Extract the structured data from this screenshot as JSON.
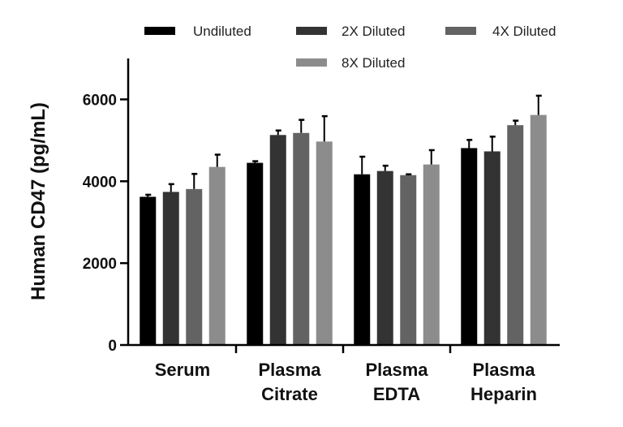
{
  "chart_data": {
    "type": "bar",
    "title": "",
    "xlabel": "",
    "ylabel": "Human CD47 (pg/mL)",
    "categories": [
      [
        "Serum"
      ],
      [
        "Plasma",
        "Citrate"
      ],
      [
        "Plasma",
        "EDTA"
      ],
      [
        "Plasma",
        "Heparin"
      ]
    ],
    "ylim": [
      0,
      7000
    ],
    "yticks": [
      0,
      2000,
      4000,
      6000
    ],
    "ytick_labels": [
      "0",
      "2000",
      "4000",
      "6000"
    ],
    "grid": false,
    "legend_position": "top",
    "series": [
      {
        "name": "Undiluted",
        "color": "#000000",
        "values": [
          3620,
          4450,
          4170,
          4810
        ],
        "errors": [
          50,
          40,
          430,
          200
        ]
      },
      {
        "name": "2X Diluted",
        "color": "#333333",
        "values": [
          3740,
          5130,
          4250,
          4730
        ],
        "errors": [
          190,
          110,
          130,
          360
        ]
      },
      {
        "name": "4X Diluted",
        "color": "#636363",
        "values": [
          3810,
          5180,
          4150,
          5370
        ],
        "errors": [
          370,
          320,
          20,
          110
        ]
      },
      {
        "name": "8X Diluted",
        "color": "#8c8c8c",
        "values": [
          4350,
          4970,
          4410,
          5620
        ],
        "errors": [
          300,
          620,
          350,
          470
        ]
      }
    ]
  }
}
